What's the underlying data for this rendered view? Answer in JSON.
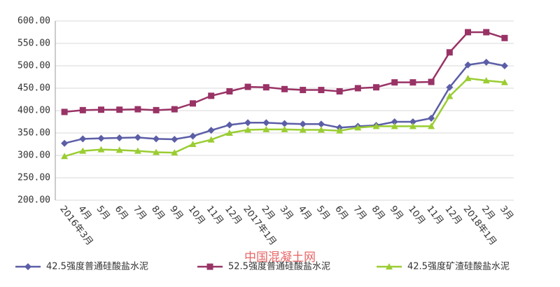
{
  "chart_data": {
    "type": "line",
    "watermark": "中国混凝土网",
    "categories": [
      "2016年3月",
      "4月",
      "5月",
      "6月",
      "7月",
      "8月",
      "9月",
      "10月",
      "11月",
      "12月",
      "2017年1月",
      "2月",
      "3月",
      "4月",
      "5月",
      "6月",
      "7月",
      "8月",
      "9月",
      "10月",
      "11月",
      "12月",
      "2018年1月",
      "2月",
      "3月"
    ],
    "series": [
      {
        "name": "42.5强度普通硅酸盐水泥",
        "color": "#5b5ea6",
        "marker": "diamond",
        "values": [
          327,
          337,
          338,
          339,
          340,
          337,
          336,
          343,
          356,
          368,
          373,
          373,
          371,
          370,
          370,
          362,
          365,
          367,
          375,
          375,
          383,
          452,
          502,
          508,
          500
        ]
      },
      {
        "name": "52.5强度普通硅酸盐水泥",
        "color": "#993366",
        "marker": "square",
        "values": [
          397,
          401,
          402,
          402,
          403,
          401,
          403,
          416,
          433,
          443,
          453,
          452,
          448,
          446,
          446,
          443,
          450,
          452,
          463,
          463,
          464,
          530,
          575,
          575,
          562
        ]
      },
      {
        "name": "42.5强度矿渣硅酸盐水泥",
        "color": "#9acd32",
        "marker": "triangle",
        "values": [
          298,
          310,
          313,
          312,
          310,
          307,
          306,
          325,
          335,
          350,
          357,
          358,
          358,
          357,
          357,
          355,
          362,
          365,
          365,
          365,
          365,
          432,
          472,
          467,
          463
        ]
      }
    ],
    "ylim": [
      200,
      600
    ],
    "yticks": [
      {
        "value": 200,
        "label": "200.00"
      },
      {
        "value": 250,
        "label": "250.00"
      },
      {
        "value": 300,
        "label": "300.00"
      },
      {
        "value": 350,
        "label": "350.00"
      },
      {
        "value": 400,
        "label": "400.00"
      },
      {
        "value": 450,
        "label": "450.00"
      },
      {
        "value": 500,
        "label": "500.00"
      },
      {
        "value": 550,
        "label": "550.00"
      },
      {
        "value": 600,
        "label": "600.00"
      }
    ],
    "grid": true
  }
}
